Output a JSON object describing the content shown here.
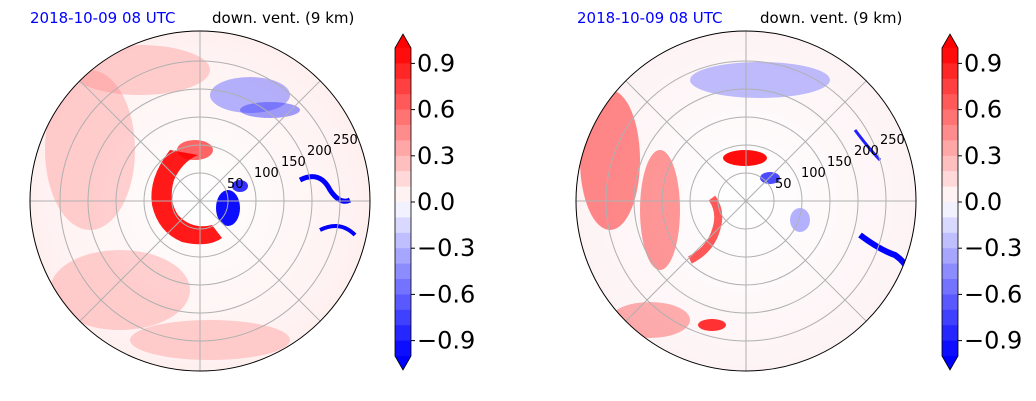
{
  "chart_data": [
    {
      "type": "heatmap",
      "projection": "polar",
      "title_left": "2018-10-09 08 UTC",
      "title_right": "down. vent. (9 km)",
      "radial_ticks": [
        "50",
        "100",
        "150",
        "200",
        "250"
      ],
      "radial_values": [
        50,
        100,
        150,
        200,
        250
      ],
      "rmax": 300,
      "grid": true,
      "colormap": "bwr",
      "colorbar": {
        "vmin": -1.0,
        "vmax": 1.0,
        "ticks": [
          0.9,
          0.6,
          0.3,
          0.0,
          -0.3,
          -0.6,
          -0.9
        ],
        "tick_labels": [
          "0.9",
          "0.6",
          "0.3",
          "0.0",
          "−0.3",
          "−0.6",
          "−0.9"
        ],
        "extend": "both"
      }
    },
    {
      "type": "heatmap",
      "projection": "polar",
      "title_left": "2018-10-09 08 UTC",
      "title_right": "down. vent. (9 km)",
      "radial_ticks": [
        "50",
        "100",
        "150",
        "200",
        "250"
      ],
      "radial_values": [
        50,
        100,
        150,
        200,
        250
      ],
      "rmax": 300,
      "grid": true,
      "colormap": "bwr",
      "colorbar": {
        "vmin": -1.0,
        "vmax": 1.0,
        "ticks": [
          0.9,
          0.6,
          0.3,
          0.0,
          -0.3,
          -0.6,
          -0.9
        ],
        "tick_labels": [
          "0.9",
          "0.6",
          "0.3",
          "0.0",
          "−0.3",
          "−0.6",
          "−0.9"
        ],
        "extend": "both"
      }
    }
  ],
  "colors": {
    "title_date": "#0000ff",
    "grid": "#b0b0b0",
    "negative_max": "#0000ff",
    "positive_max": "#ff0000",
    "neutral": "#ffffff"
  }
}
